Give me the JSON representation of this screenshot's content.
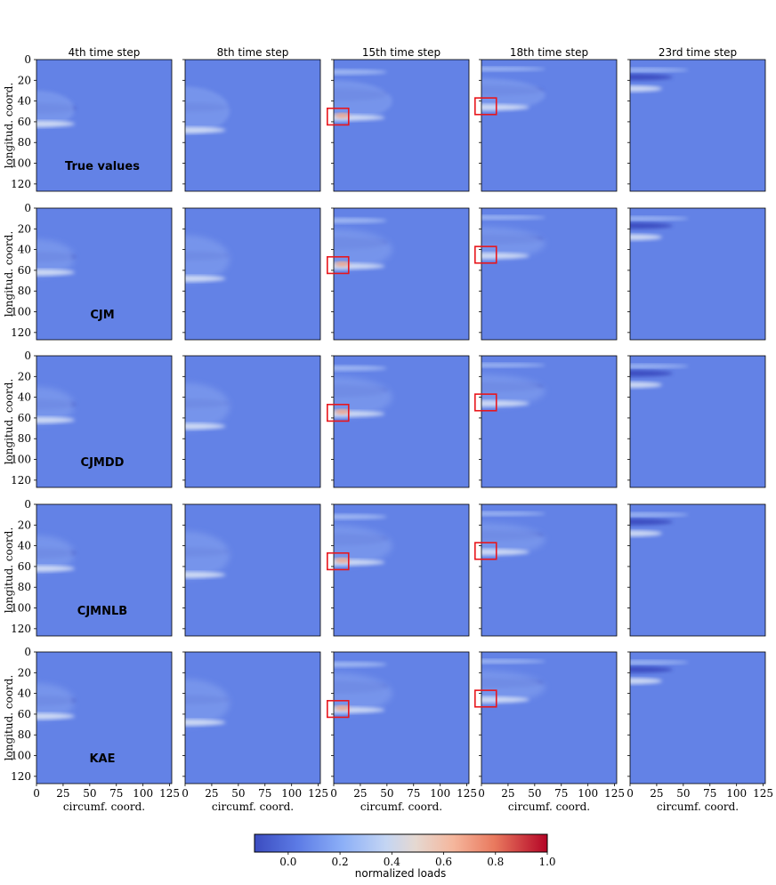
{
  "chart_data": {
    "type": "heatmap",
    "columns": [
      "4th time step",
      "8th time step",
      "15th time step",
      "18th time step",
      "23rd time step"
    ],
    "rows": [
      "True values",
      "CJM",
      "CJMDD",
      "CJMNLB",
      "KAE"
    ],
    "xlabel": "circumf. coord.",
    "ylabel": "longitud. coord.",
    "xticks": [
      0,
      25,
      50,
      75,
      100,
      125
    ],
    "yticks": [
      0,
      20,
      40,
      60,
      80,
      100,
      120
    ],
    "xlim": [
      0,
      127
    ],
    "ylim": [
      127,
      0
    ],
    "colorbar": {
      "label": "normalized loads",
      "ticks": [
        0.0,
        0.2,
        0.4,
        0.6,
        0.8,
        1.0
      ],
      "tick_labels": [
        "0.0",
        "0.2",
        "0.4",
        "0.6",
        "0.8",
        "1.0"
      ],
      "range": [
        -0.13,
        1.0
      ],
      "colormap": "coolwarm"
    },
    "background_value": 0.0,
    "highlight_boxes": [
      {
        "column": "15th time step",
        "x_range": [
          -6,
          14
        ],
        "y_range": [
          47,
          63
        ]
      },
      {
        "column": "18th time step",
        "x_range": [
          -6,
          14
        ],
        "y_range": [
          37,
          53
        ]
      }
    ]
  },
  "colors": {
    "background": "#6382e6",
    "low": "#3b4cc0",
    "mid": "#dddddd",
    "high": "#b40426",
    "highlight_box": "#e8161c"
  }
}
